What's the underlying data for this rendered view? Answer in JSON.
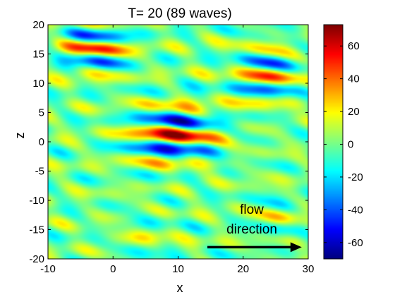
{
  "chart_data": {
    "type": "heatmap",
    "title": "T= 20   (89 waves)",
    "xlabel": "x",
    "ylabel": "z",
    "xlim": [
      -10,
      30
    ],
    "ylim": [
      -20,
      20
    ],
    "x_ticks": [
      -10,
      0,
      10,
      20,
      30
    ],
    "y_ticks": [
      -20,
      -15,
      -10,
      -5,
      0,
      5,
      10,
      15,
      20
    ],
    "colorbar": {
      "range": [
        -70,
        73
      ],
      "ticks": [
        -60,
        -40,
        -20,
        0,
        20,
        40,
        60
      ],
      "colormap": "jet"
    },
    "wave_packets": [
      {
        "x": 10,
        "z": 1,
        "amplitude": 70,
        "sigma_x": 5,
        "sigma_z": 3.5,
        "k_z": 1.2
      },
      {
        "x": -3,
        "z": 16,
        "amplitude": 50,
        "sigma_x": 4,
        "sigma_z": 3,
        "k_z": 1.3
      },
      {
        "x": 24,
        "z": 11,
        "amplitude": 55,
        "sigma_x": 4,
        "sigma_z": 4,
        "k_z": 1.3
      },
      {
        "x": 26,
        "z": -13,
        "amplitude": 30,
        "sigma_x": 3,
        "sigma_z": 3,
        "k_z": 1.2
      },
      {
        "x": 5,
        "z": -16,
        "amplitude": 30,
        "sigma_x": 3,
        "sigma_z": 3,
        "k_z": 1.2
      }
    ],
    "annotation": {
      "lines": [
        "flow",
        "direction"
      ],
      "arrow_from": [
        14.5,
        -18
      ],
      "arrow_to": [
        29,
        -18
      ]
    }
  }
}
